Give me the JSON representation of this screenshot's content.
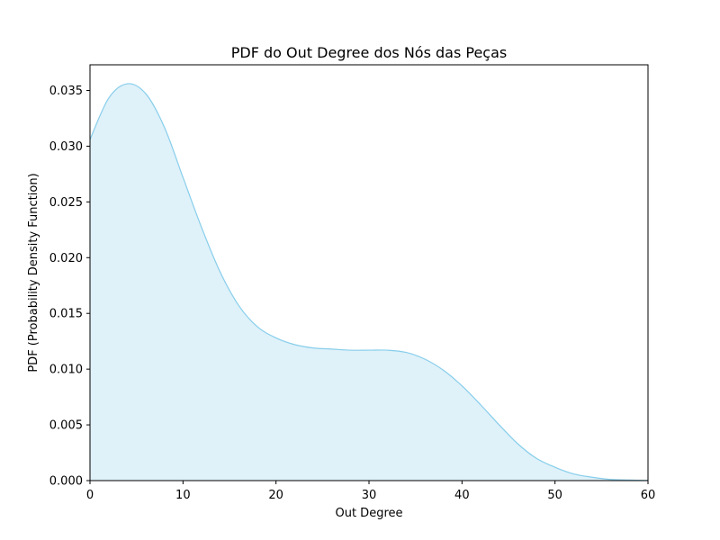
{
  "chart_data": {
    "type": "area",
    "title": "PDF do Out Degree dos Nós das Peças",
    "xlabel": "Out Degree",
    "ylabel": "PDF (Probability Density Function)",
    "xlim": [
      0,
      60
    ],
    "ylim": [
      0,
      0.0373
    ],
    "x_ticks": [
      0,
      10,
      20,
      30,
      40,
      50,
      60
    ],
    "x_tick_labels": [
      "0",
      "10",
      "20",
      "30",
      "40",
      "50",
      "60"
    ],
    "y_ticks": [
      0,
      0.005,
      0.01,
      0.015,
      0.02,
      0.025,
      0.03,
      0.035
    ],
    "y_tick_labels": [
      "0.000",
      "0.005",
      "0.010",
      "0.015",
      "0.020",
      "0.025",
      "0.030",
      "0.035"
    ],
    "grid": false,
    "legend": "none",
    "fill_color": "#dff1f9",
    "line_color": "#87ceeb",
    "series": [
      {
        "x": [
          0,
          2,
          4,
          6,
          8,
          10,
          12,
          14,
          16,
          18,
          20,
          22,
          24,
          26,
          28,
          30,
          32,
          34,
          36,
          38,
          40,
          42,
          44,
          46,
          48,
          50,
          52,
          54,
          56,
          58,
          60
        ],
        "values": [
          0.0306,
          0.0343,
          0.0356,
          0.0347,
          0.0317,
          0.0272,
          0.0227,
          0.0187,
          0.0157,
          0.0138,
          0.0128,
          0.0122,
          0.0119,
          0.0118,
          0.0117,
          0.0117,
          0.0117,
          0.0115,
          0.0109,
          0.0099,
          0.0085,
          0.0068,
          0.005,
          0.0033,
          0.002,
          0.0012,
          0.0006,
          0.0003,
          0.0001,
          5e-05,
          1e-05
        ]
      }
    ]
  }
}
